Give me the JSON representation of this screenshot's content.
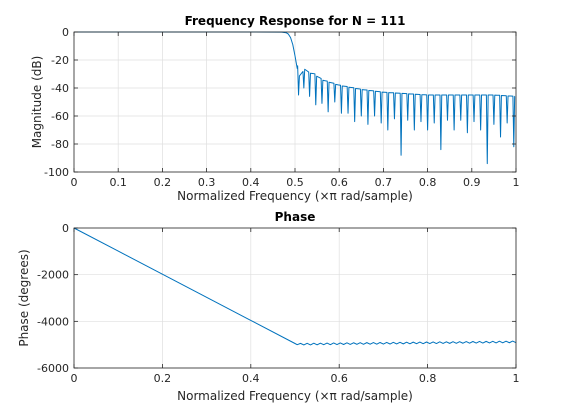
{
  "colors": {
    "line": "#0072BD",
    "grid": "#dfdfdf",
    "axes": "#262626",
    "background": "#ffffff"
  },
  "chart_data": [
    {
      "type": "line",
      "title": "Frequency Response for N = 111",
      "xlabel": "Normalized Frequency  (×π rad/sample)",
      "ylabel": "Magnitude (dB)",
      "xlim": [
        0,
        1
      ],
      "ylim": [
        -100,
        0
      ],
      "xticks": [
        0,
        0.1,
        0.2,
        0.3,
        0.4,
        0.5,
        0.6,
        0.7,
        0.8,
        0.9,
        1
      ],
      "xtick_labels": [
        "0",
        "0.1",
        "0.2",
        "0.3",
        "0.4",
        "0.5",
        "0.6",
        "0.7",
        "0.8",
        "0.9",
        "1"
      ],
      "yticks": [
        0,
        -20,
        -40,
        -60,
        -80,
        -100
      ],
      "ytick_labels": [
        "0",
        "-20",
        "-40",
        "-60",
        "-80",
        "-100"
      ],
      "grid": true,
      "series": [
        {
          "x": [
            0,
            0.1,
            0.2,
            0.3,
            0.4,
            0.47,
            0.48,
            0.485,
            0.49,
            0.495,
            0.5,
            0.505,
            0.51,
            0.52,
            0.53,
            0.545,
            0.56,
            0.58,
            0.6,
            0.65,
            0.7,
            0.75,
            0.8,
            0.85,
            0.9,
            0.95,
            1
          ],
          "y": [
            0,
            0,
            0,
            0,
            0,
            -0.1,
            -0.5,
            -1.5,
            -4,
            -9,
            -17,
            -26,
            -33,
            -25,
            -29,
            -30,
            -34,
            -36,
            -38,
            -41,
            -43,
            -44,
            -45,
            -45,
            -45,
            -45,
            -46
          ],
          "notch_minima": [
            {
              "x": 0.508,
              "y": -45
            },
            {
              "x": 0.52,
              "y": -40
            },
            {
              "x": 0.533,
              "y": -46
            },
            {
              "x": 0.547,
              "y": -52
            },
            {
              "x": 0.561,
              "y": -51
            },
            {
              "x": 0.575,
              "y": -57
            },
            {
              "x": 0.59,
              "y": -50
            },
            {
              "x": 0.605,
              "y": -58
            },
            {
              "x": 0.62,
              "y": -58
            },
            {
              "x": 0.635,
              "y": -64
            },
            {
              "x": 0.65,
              "y": -60
            },
            {
              "x": 0.665,
              "y": -66
            },
            {
              "x": 0.68,
              "y": -60
            },
            {
              "x": 0.695,
              "y": -65
            },
            {
              "x": 0.71,
              "y": -70
            },
            {
              "x": 0.725,
              "y": -62
            },
            {
              "x": 0.74,
              "y": -88
            },
            {
              "x": 0.755,
              "y": -63
            },
            {
              "x": 0.77,
              "y": -70
            },
            {
              "x": 0.785,
              "y": -64
            },
            {
              "x": 0.8,
              "y": -70
            },
            {
              "x": 0.815,
              "y": -65
            },
            {
              "x": 0.83,
              "y": -84
            },
            {
              "x": 0.845,
              "y": -63
            },
            {
              "x": 0.86,
              "y": -70
            },
            {
              "x": 0.875,
              "y": -63
            },
            {
              "x": 0.89,
              "y": -72
            },
            {
              "x": 0.905,
              "y": -64
            },
            {
              "x": 0.92,
              "y": -70
            },
            {
              "x": 0.935,
              "y": -94
            },
            {
              "x": 0.95,
              "y": -66
            },
            {
              "x": 0.965,
              "y": -75
            },
            {
              "x": 0.98,
              "y": -65
            },
            {
              "x": 0.995,
              "y": -82
            }
          ]
        }
      ]
    },
    {
      "type": "line",
      "title": "Phase",
      "xlabel": "Normalized Frequency  (×π rad/sample)",
      "ylabel": "Phase (degrees)",
      "xlim": [
        0,
        1
      ],
      "ylim": [
        -6000,
        0
      ],
      "xticks": [
        0,
        0.2,
        0.4,
        0.6,
        0.8,
        1
      ],
      "xtick_labels": [
        "0",
        "0.2",
        "0.4",
        "0.6",
        "0.8",
        "1"
      ],
      "yticks": [
        0,
        -2000,
        -4000,
        -6000
      ],
      "ytick_labels": [
        "0",
        "-2000",
        "-4000",
        "-6000"
      ],
      "grid": true,
      "series": [
        {
          "x": [
            0,
            0.1,
            0.2,
            0.3,
            0.4,
            0.5,
            0.51,
            0.6,
            0.7,
            0.8,
            0.9,
            1
          ],
          "y": [
            0,
            -990,
            -1980,
            -2970,
            -3960,
            -4950,
            -4980,
            -4960,
            -4940,
            -4920,
            -4900,
            -4880
          ]
        }
      ]
    }
  ]
}
